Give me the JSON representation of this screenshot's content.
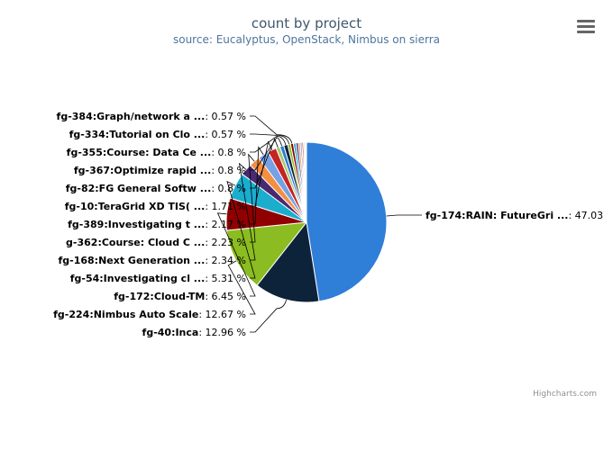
{
  "header": {
    "title": "count by project",
    "subtitle": "source: Eucalyptus, OpenStack, Nimbus on sierra"
  },
  "credits": "Highcharts.com",
  "chart_data": {
    "type": "pie",
    "title": "count by project",
    "subtitle": "source: Eucalyptus, OpenStack, Nimbus on sierra",
    "slices": [
      {
        "name": "fg-174:RAIN: FutureGri ...",
        "value": 47.03,
        "value_text": "47.03",
        "color": "#2f7ed8",
        "labeled": true
      },
      {
        "name": "fg-40:Inca",
        "value": 12.96,
        "value_text": "12.96 %",
        "color": "#0d233a",
        "labeled": true
      },
      {
        "name": "fg-224:Nimbus Auto Scale",
        "value": 12.67,
        "value_text": "12.67 %",
        "color": "#8bbc21",
        "labeled": true
      },
      {
        "name": "fg-172:Cloud-TM",
        "value": 6.45,
        "value_text": "6.45 %",
        "color": "#910000",
        "labeled": true
      },
      {
        "name": "fg-54:Investigating cl ...",
        "value": 5.31,
        "value_text": "5.31 %",
        "color": "#1aadce",
        "labeled": true
      },
      {
        "name": "fg-168:Next Generation ...",
        "value": 2.34,
        "value_text": "2.34 %",
        "color": "#492970",
        "labeled": true
      },
      {
        "name": "g-362:Course: Cloud C ...",
        "value": 2.23,
        "value_text": "2.23 %",
        "color": "#f28f43",
        "labeled": true
      },
      {
        "name": "fg-389:Investigating t ...",
        "value": 2.17,
        "value_text": "2.17 %",
        "color": "#77a1e5",
        "labeled": true
      },
      {
        "name": "fg-10:TeraGrid XD TIS( ...",
        "value": 1.71,
        "value_text": "1.71 %",
        "color": "#c42525",
        "labeled": true
      },
      {
        "name": "fg-82:FG General Softw ...",
        "value": 0.8,
        "value_text": "0.8 %",
        "color": "#a6c96a",
        "labeled": true
      },
      {
        "name": "fg-367:Optimize rapid ...",
        "value": 0.8,
        "value_text": "0.8 %",
        "color": "#2f7ed8",
        "labeled": true
      },
      {
        "name": "fg-355:Course: Data Ce ...",
        "value": 0.8,
        "value_text": "0.8 %",
        "color": "#0d233a",
        "labeled": true
      },
      {
        "name": "fg-334:Tutorial on Clo ...",
        "value": 0.57,
        "value_text": "0.57 %",
        "color": "#8bbc21",
        "labeled": true
      },
      {
        "name": "fg-384:Graph/network a ...",
        "value": 0.57,
        "value_text": "0.57 %",
        "color": "#910000",
        "labeled": true
      },
      {
        "name": "",
        "value": 0.5,
        "value_text": "",
        "color": "#1aadce",
        "labeled": false
      },
      {
        "name": "",
        "value": 0.45,
        "value_text": "",
        "color": "#492970",
        "labeled": false
      },
      {
        "name": "",
        "value": 0.4,
        "value_text": "",
        "color": "#f28f43",
        "labeled": false
      },
      {
        "name": "",
        "value": 0.35,
        "value_text": "",
        "color": "#77a1e5",
        "labeled": false
      },
      {
        "name": "",
        "value": 0.3,
        "value_text": "",
        "color": "#c42525",
        "labeled": false
      },
      {
        "name": "",
        "value": 0.25,
        "value_text": "",
        "color": "#a6c96a",
        "labeled": false
      },
      {
        "name": "",
        "value": 0.2,
        "value_text": "",
        "color": "#2f7ed8",
        "labeled": false
      },
      {
        "name": "",
        "value": 0.15,
        "value_text": "",
        "color": "#0d233a",
        "labeled": false
      }
    ]
  }
}
